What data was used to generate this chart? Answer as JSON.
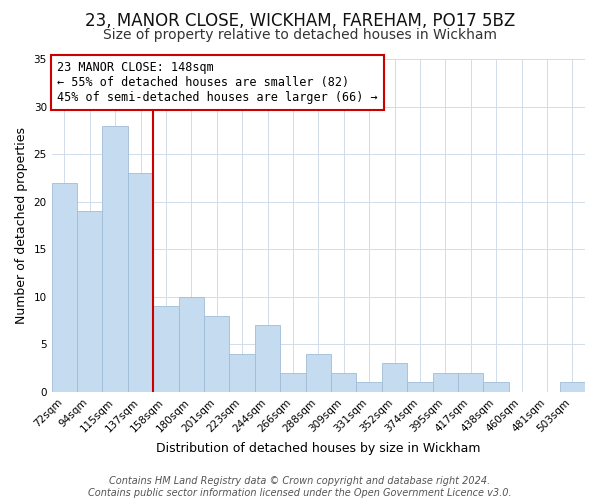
{
  "title": "23, MANOR CLOSE, WICKHAM, FAREHAM, PO17 5BZ",
  "subtitle": "Size of property relative to detached houses in Wickham",
  "xlabel": "Distribution of detached houses by size in Wickham",
  "ylabel": "Number of detached properties",
  "bin_labels": [
    "72sqm",
    "94sqm",
    "115sqm",
    "137sqm",
    "158sqm",
    "180sqm",
    "201sqm",
    "223sqm",
    "244sqm",
    "266sqm",
    "288sqm",
    "309sqm",
    "331sqm",
    "352sqm",
    "374sqm",
    "395sqm",
    "417sqm",
    "438sqm",
    "460sqm",
    "481sqm",
    "503sqm"
  ],
  "bar_values": [
    22,
    19,
    28,
    23,
    9,
    10,
    8,
    4,
    7,
    2,
    4,
    2,
    1,
    3,
    1,
    2,
    2,
    1,
    0,
    0,
    1
  ],
  "bar_color": "#c5dcf0",
  "bar_edge_color": "#a0bcd8",
  "reference_line_color": "#cc0000",
  "annotation_text": "23 MANOR CLOSE: 148sqm\n← 55% of detached houses are smaller (82)\n45% of semi-detached houses are larger (66) →",
  "annotation_box_color": "#ffffff",
  "annotation_box_edge_color": "#cc0000",
  "ylim": [
    0,
    35
  ],
  "yticks": [
    0,
    5,
    10,
    15,
    20,
    25,
    30,
    35
  ],
  "footer_line1": "Contains HM Land Registry data © Crown copyright and database right 2024.",
  "footer_line2": "Contains public sector information licensed under the Open Government Licence v3.0.",
  "title_fontsize": 12,
  "subtitle_fontsize": 10,
  "axis_label_fontsize": 9,
  "tick_fontsize": 7.5,
  "annotation_fontsize": 8.5,
  "footer_fontsize": 7
}
